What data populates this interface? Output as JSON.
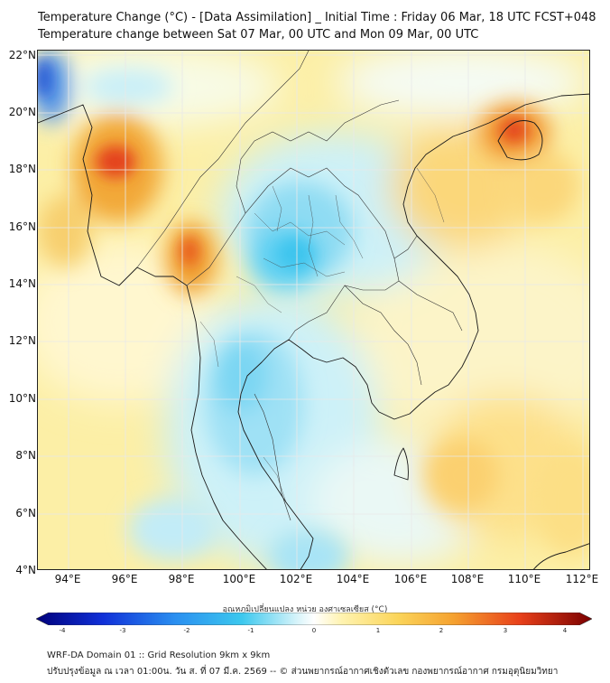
{
  "title": {
    "line1": "Temperature Change (°C) - [Data Assimilation] _ Initial Time : Friday 06 Mar, 18 UTC FCST+048",
    "line2": "Temperature change between Sat 07 Mar, 00 UTC and Mon 09 Mar, 00 UTC"
  },
  "map": {
    "lat_labels": [
      "22°N",
      "20°N",
      "18°N",
      "16°N",
      "14°N",
      "12°N",
      "10°N",
      "8°N",
      "6°N",
      "4°N"
    ],
    "lon_labels": [
      "94°E",
      "96°E",
      "98°E",
      "100°E",
      "102°E",
      "104°E",
      "106°E",
      "108°E",
      "110°E",
      "112°E"
    ]
  },
  "colorbar": {
    "label": "อุณหภูมิเปลี่ยนแปลง หน่วย องศาเซลเซียส (°C)",
    "ticks": [
      "-4",
      "-3",
      "-2",
      "-1",
      "0",
      "1",
      "2",
      "3",
      "4"
    ]
  },
  "footer": {
    "line1": "WRF-DA Domain 01 :: Grid Resolution 9km x 9km",
    "line2": "ปรับปรุงข้อมูล ณ เวลา 01:00น. วัน ส. ที่ 07 มี.ค. 2569 -- © ส่วนพยากรณ์อากาศเชิงตัวเลข กองพยากรณ์อากาศ กรมอุตุนิยมวิทยา"
  },
  "colors": {
    "warm_strong": "#e8401a",
    "warm": "#f5b22a",
    "warm_light": "#fbe37a",
    "neutral": "#ffffff",
    "cool_light": "#bfeffa",
    "cool": "#3cc5ee",
    "cool_strong": "#1a4fd6"
  }
}
